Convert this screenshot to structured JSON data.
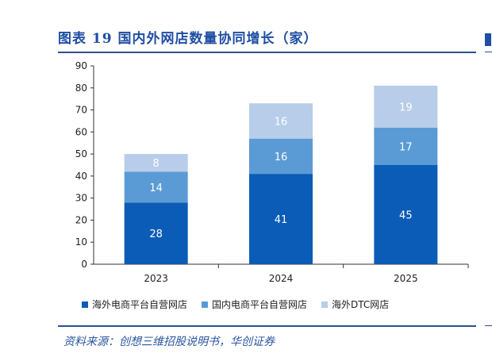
{
  "header": {
    "title": "图表 19   国内外网店数量协同增长（家）"
  },
  "footer": {
    "source": "资料来源：创想三维招股说明书，华创证券"
  },
  "colors": {
    "series_1": "#0b5cb6",
    "series_2": "#5b9bd5",
    "series_3": "#b7cde9",
    "accent": "#1f4ea3"
  },
  "chart_data": {
    "type": "bar",
    "stacked": true,
    "categories": [
      "2023",
      "2024",
      "2025"
    ],
    "series": [
      {
        "name": "海外电商平台自营网店",
        "values": [
          28,
          41,
          45
        ]
      },
      {
        "name": "国内电商平台自营网店",
        "values": [
          14,
          16,
          17
        ]
      },
      {
        "name": "海外DTC网店",
        "values": [
          8,
          16,
          19
        ]
      }
    ],
    "title": "",
    "xlabel": "",
    "ylabel": "",
    "ylim": [
      0,
      90
    ],
    "yticks": [
      0,
      10,
      20,
      30,
      40,
      50,
      60,
      70,
      80,
      90
    ],
    "grid": false,
    "legend_position": "bottom"
  }
}
